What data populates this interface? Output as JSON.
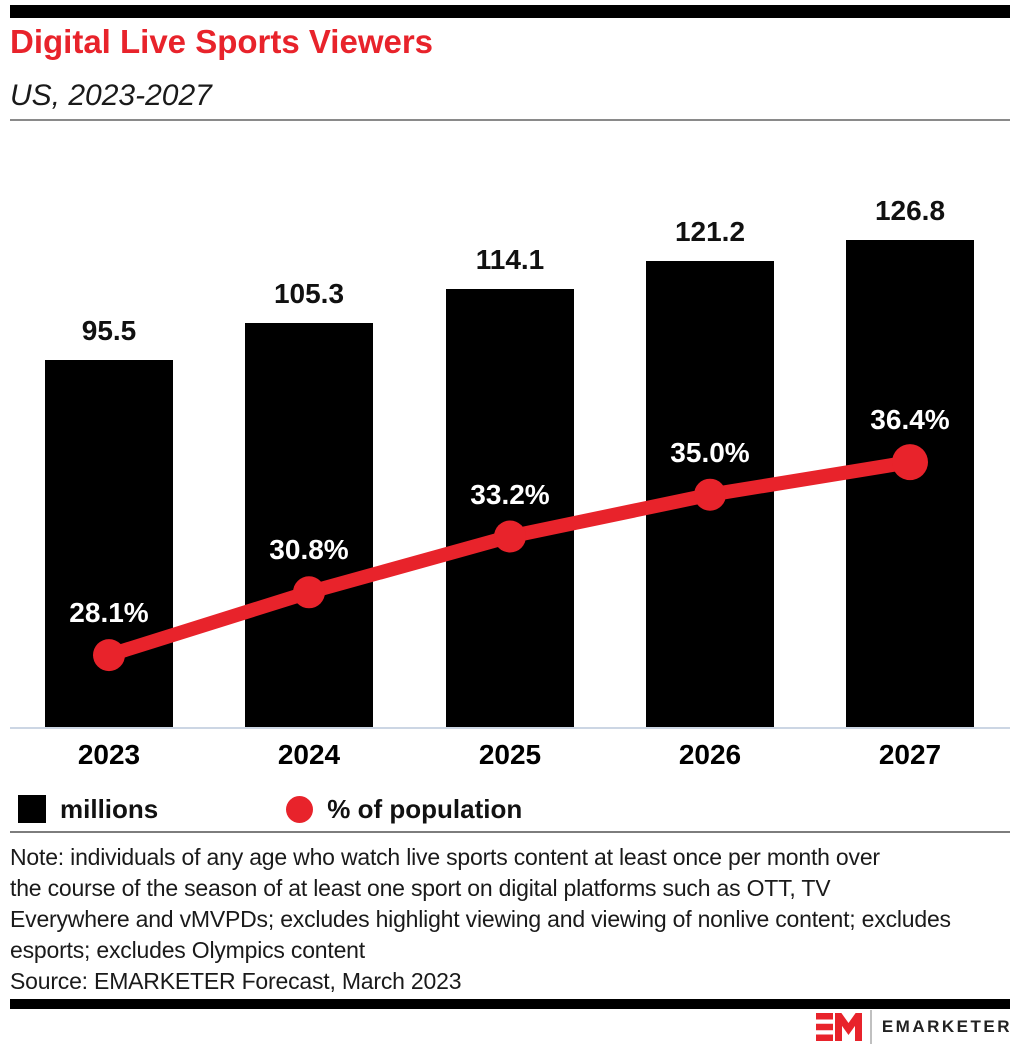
{
  "header": {
    "title": "Digital Live Sports Viewers",
    "subtitle": "US, 2023-2027"
  },
  "chart_data": {
    "type": "bar",
    "title": "Digital Live Sports Viewers",
    "subtitle": "US, 2023-2027",
    "categories": [
      "2023",
      "2024",
      "2025",
      "2026",
      "2027"
    ],
    "series": [
      {
        "name": "millions",
        "type": "bar",
        "color": "#000000",
        "values": [
          95.5,
          105.3,
          114.1,
          121.2,
          126.8
        ],
        "display_values": [
          "95.5",
          "105.3",
          "114.1",
          "121.2",
          "126.8"
        ]
      },
      {
        "name": "% of population",
        "type": "line",
        "color": "#e8232b",
        "values": [
          28.1,
          30.8,
          33.2,
          35.0,
          36.4
        ],
        "display_values": [
          "28.1%",
          "30.8%",
          "33.2%",
          "35.0%",
          "36.4%"
        ]
      }
    ],
    "xlabel": "",
    "ylabel": "",
    "ylim_bar": [
      0,
      140
    ],
    "ylim_pct": [
      25,
      38
    ],
    "grid": false,
    "legend_position": "bottom"
  },
  "legend": {
    "items": [
      {
        "label": "millions",
        "swatch": "square",
        "color": "#000000"
      },
      {
        "label": "% of population",
        "swatch": "circle",
        "color": "#e8232b"
      }
    ]
  },
  "footnote": {
    "note_lines": [
      "Note: individuals of any age who watch live sports content at least once per month over",
      "the course of the season of at least one sport on digital platforms such as OTT, TV",
      "Everywhere and vMVPDs; excludes highlight viewing and viewing of nonlive content; excludes",
      "esports; excludes Olympics content"
    ],
    "source": "Source: EMARKETER Forecast, March 2023"
  },
  "branding": {
    "logo_monogram": "EM",
    "logo_text": "EMARKETER"
  },
  "colors": {
    "accent_red": "#e8232b",
    "axis_line": "#ccd6e4",
    "rule_gray": "#8a8a8a",
    "text_dark": "#111111"
  }
}
